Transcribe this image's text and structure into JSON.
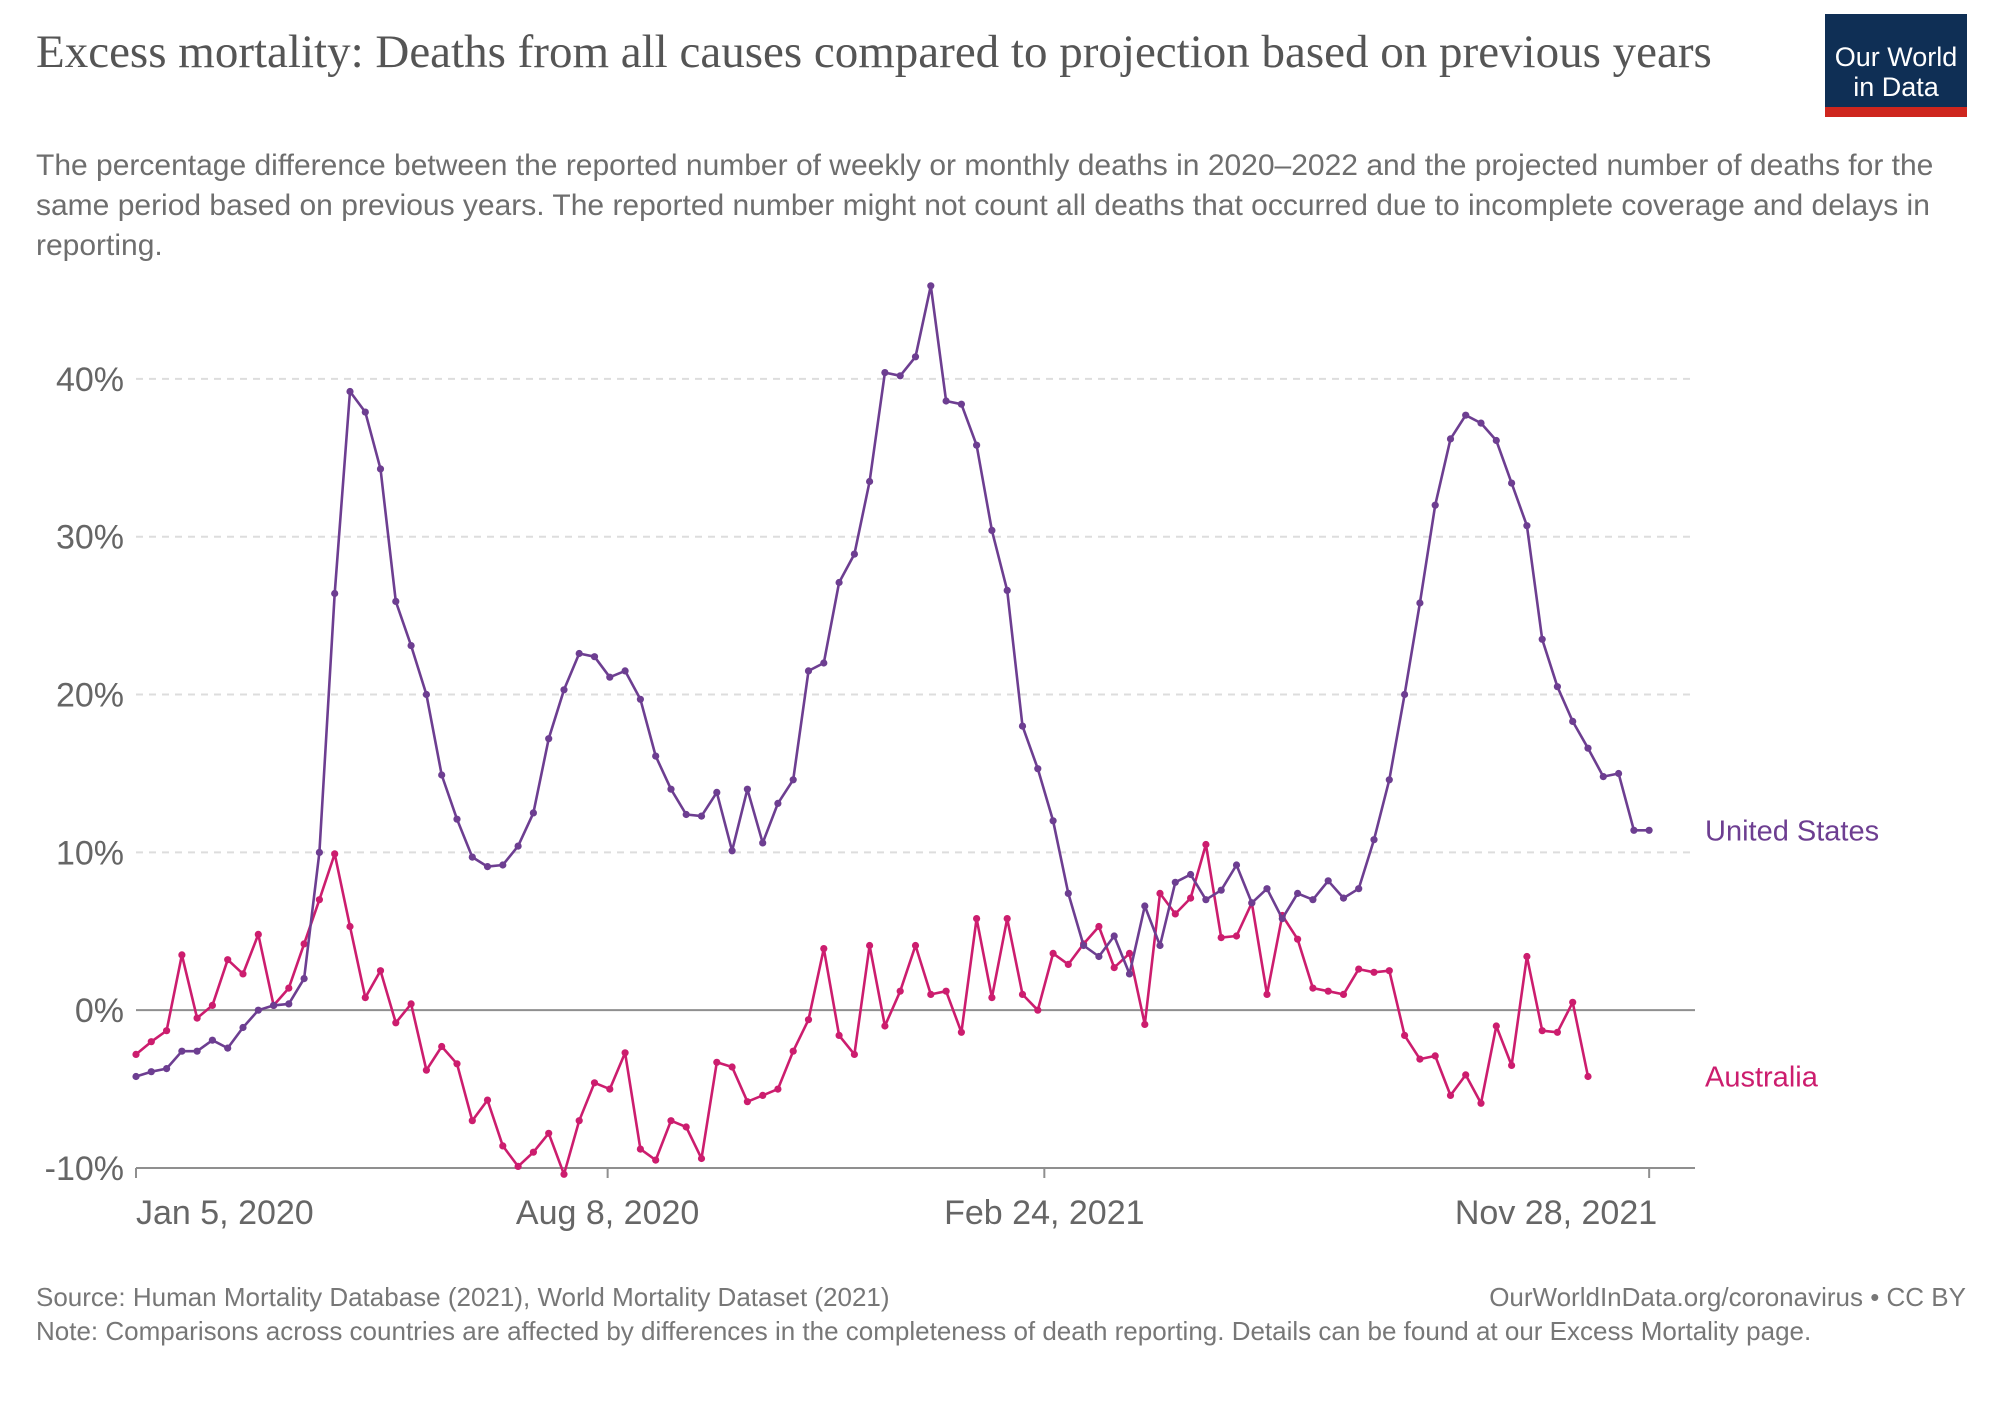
{
  "title": "Excess mortality: Deaths from all causes compared to projection based on previous years",
  "subtitle": "The percentage difference between the reported number of weekly or monthly deaths in 2020–2022 and the projected number of deaths for the same period based on previous years. The reported number might not count all deaths that occurred due to incomplete coverage and delays in reporting.",
  "logo": {
    "line1": "Our World",
    "line2": "in Data",
    "background": "#0f2f55",
    "accent": "#ce261e"
  },
  "footer": {
    "source": "Source: Human Mortality Database (2021), World Mortality Dataset (2021)",
    "license": "OurWorldInData.org/coronavirus • CC BY",
    "note": "Note: Comparisons across countries are affected by differences in the completeness of death reporting. Details can be found at our Excess Mortality page."
  },
  "chart_data": {
    "type": "line",
    "title": "Excess mortality: Deaths from all causes compared to projection based on previous years",
    "xlabel": "",
    "ylabel": "",
    "x_start": "2020-01-05",
    "x_step_days": 7,
    "xlim": [
      "2020-01-05",
      "2021-12-19"
    ],
    "ylim": [
      -10,
      45
    ],
    "y_ticks": [
      -10,
      0,
      10,
      20,
      30,
      40
    ],
    "y_tick_labels": [
      "-10%",
      "0%",
      "10%",
      "20%",
      "30%",
      "40%"
    ],
    "x_ticks": [
      "2020-01-05",
      "2020-08-08",
      "2021-02-24",
      "2021-11-28"
    ],
    "x_tick_labels": [
      "Jan 5, 2020",
      "Aug 8, 2020",
      "Feb 24, 2021",
      "Nov 28, 2021"
    ],
    "grid": true,
    "legend": "inline labels at line ends",
    "series": [
      {
        "name": "United States",
        "color": "#6d3e91",
        "values": [
          -4.2,
          -3.9,
          -3.7,
          -2.6,
          -2.6,
          -1.9,
          -2.4,
          -1.1,
          0.0,
          0.3,
          0.4,
          2.0,
          10.0,
          26.4,
          39.2,
          37.9,
          34.3,
          25.9,
          23.1,
          20.0,
          14.9,
          12.1,
          9.7,
          9.1,
          9.2,
          10.4,
          12.5,
          17.2,
          20.3,
          22.6,
          22.4,
          21.1,
          21.5,
          19.7,
          16.1,
          14.0,
          12.4,
          12.3,
          13.8,
          10.1,
          14.0,
          10.6,
          13.1,
          14.6,
          21.5,
          22.0,
          27.1,
          28.9,
          33.5,
          40.4,
          40.2,
          41.4,
          45.9,
          38.6,
          38.4,
          35.8,
          30.4,
          26.6,
          18.0,
          15.3,
          12.0,
          7.4,
          4.1,
          3.4,
          4.7,
          2.3,
          6.6,
          4.1,
          8.1,
          8.6,
          7.0,
          7.6,
          9.2,
          6.8,
          7.7,
          5.8,
          7.4,
          7.0,
          8.2,
          7.1,
          7.7,
          10.8,
          14.6,
          20.0,
          25.8,
          32.0,
          36.2,
          37.7,
          37.2,
          36.1,
          33.4,
          30.7,
          23.5,
          20.5,
          18.3,
          16.6,
          14.8,
          15.0,
          11.4,
          11.4
        ]
      },
      {
        "name": "Australia",
        "color": "#cc1d6e",
        "values": [
          -2.8,
          -2.0,
          -1.3,
          3.5,
          -0.5,
          0.3,
          3.2,
          2.3,
          4.8,
          0.3,
          1.4,
          4.2,
          7.0,
          9.9,
          5.3,
          0.8,
          2.5,
          -0.8,
          0.4,
          -3.8,
          -2.3,
          -3.4,
          -7.0,
          -5.7,
          -8.6,
          -9.9,
          -9.0,
          -7.8,
          -10.4,
          -7.0,
          -4.6,
          -5.0,
          -2.7,
          -8.8,
          -9.5,
          -7.0,
          -7.4,
          -9.4,
          -3.3,
          -3.6,
          -5.8,
          -5.4,
          -5.0,
          -2.6,
          -0.6,
          3.9,
          -1.6,
          -2.8,
          4.1,
          -1.0,
          1.2,
          4.1,
          1.0,
          1.2,
          -1.4,
          5.8,
          0.8,
          5.8,
          1.0,
          0.0,
          3.6,
          2.9,
          4.2,
          5.3,
          2.7,
          3.6,
          -0.9,
          7.4,
          6.1,
          7.1,
          10.5,
          4.6,
          4.7,
          6.8,
          1.0,
          6.0,
          4.5,
          1.4,
          1.2,
          1.0,
          2.6,
          2.4,
          2.5,
          -1.6,
          -3.1,
          -2.9,
          -5.4,
          -4.1,
          -5.9,
          -1.0,
          -3.5,
          3.4,
          -1.3,
          -1.4,
          0.5,
          -4.2
        ]
      }
    ]
  }
}
